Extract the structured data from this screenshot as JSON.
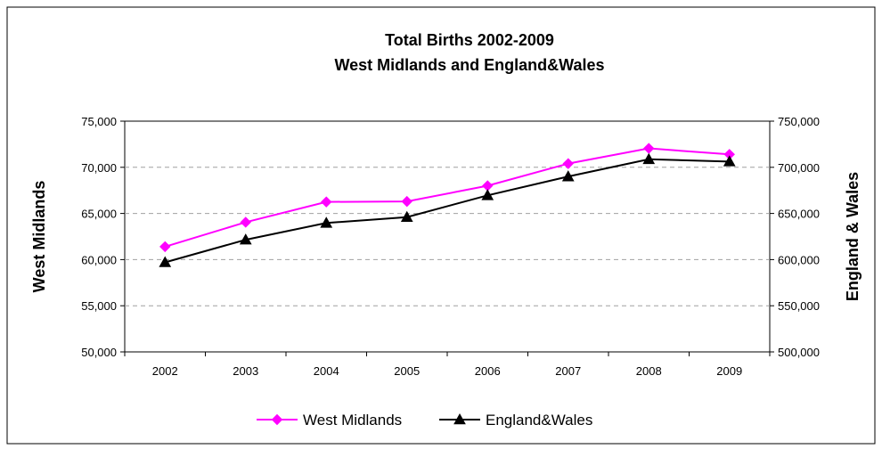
{
  "chart_data": {
    "type": "line",
    "title": "Total Births 2002-2009",
    "subtitle": "West Midlands and England&Wales",
    "categories": [
      "2002",
      "2003",
      "2004",
      "2005",
      "2006",
      "2007",
      "2008",
      "2009"
    ],
    "y_left": {
      "label": "West Midlands",
      "range": [
        50000,
        75000
      ],
      "ticks": [
        "50,000",
        "55,000",
        "60,000",
        "65,000",
        "70,000",
        "75,000"
      ]
    },
    "y_right": {
      "label": "England & Wales",
      "range": [
        500000,
        750000
      ],
      "ticks": [
        "500,000",
        "550,000",
        "600,000",
        "650,000",
        "700,000",
        "750,000"
      ]
    },
    "series": [
      {
        "name": "West Midlands",
        "axis": "left",
        "color": "#ff00ff",
        "marker": "diamond",
        "values": [
          61400,
          64050,
          66250,
          66300,
          68000,
          70400,
          72050,
          71400
        ]
      },
      {
        "name": "England&Wales",
        "axis": "right",
        "color": "#000000",
        "marker": "triangle",
        "values": [
          597000,
          621500,
          639700,
          646000,
          669600,
          690000,
          708700,
          706200
        ]
      }
    ],
    "grid": "horizontal dashed",
    "legend_position": "bottom"
  }
}
